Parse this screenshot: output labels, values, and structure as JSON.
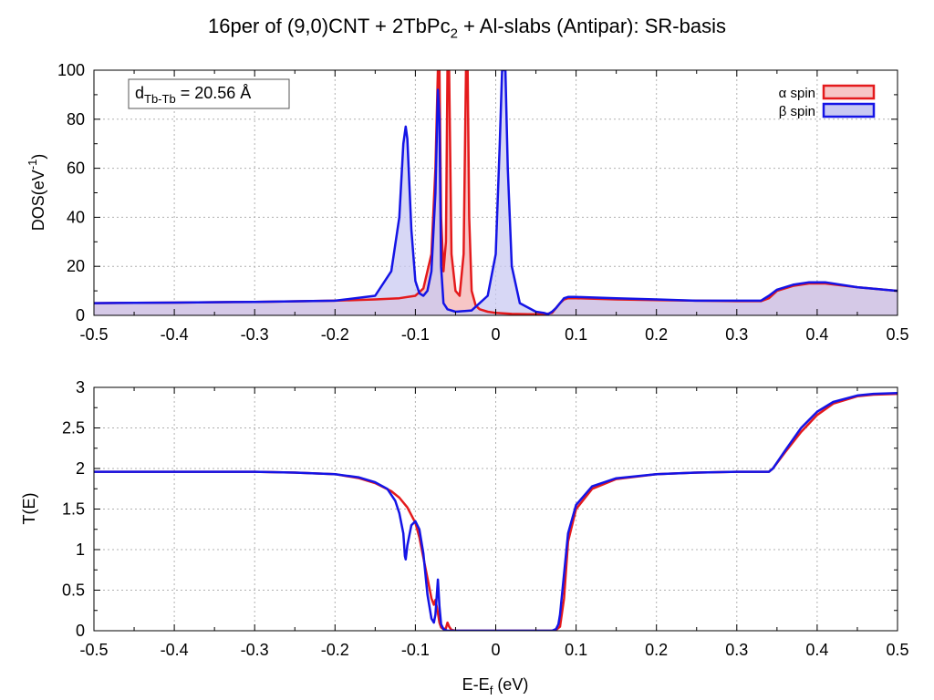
{
  "title": {
    "main": "16per of (9,0)CNT + 2TbPc",
    "sub": "2",
    "rest": " + Al-slabs (Antipar): SR-basis"
  },
  "colors": {
    "alpha": "#e41a1c",
    "beta": "#1414e6",
    "alpha_fill": "#f7c6c6",
    "beta_fill": "#c9c9f2",
    "overlap_fill": "#c7a3d4"
  },
  "chart_data": [
    {
      "type": "area",
      "panel": "top",
      "ylabel_main": "DOS(eV",
      "ylabel_sup": "-1",
      "ylabel_end": ")",
      "xlim": [
        -0.5,
        0.5
      ],
      "ylim": [
        0,
        100
      ],
      "xticks": [
        "-0.5",
        "-0.4",
        "-0.3",
        "-0.2",
        "-0.1",
        "0",
        "0.1",
        "0.2",
        "0.3",
        "0.4",
        "0.5"
      ],
      "yticks": [
        "0",
        "20",
        "40",
        "60",
        "80",
        "100"
      ],
      "grid": true,
      "legend_position": "top-right",
      "annotation": {
        "prefix": "d",
        "sub": "Tb-Tb",
        "suffix": " = 20.56 Å"
      },
      "series": [
        {
          "name": "α spin",
          "x": [
            -0.5,
            -0.4,
            -0.3,
            -0.2,
            -0.15,
            -0.12,
            -0.1,
            -0.09,
            -0.08,
            -0.075,
            -0.072,
            -0.07,
            -0.068,
            -0.065,
            -0.062,
            -0.06,
            -0.058,
            -0.055,
            -0.05,
            -0.045,
            -0.04,
            -0.037,
            -0.035,
            -0.033,
            -0.03,
            -0.025,
            -0.02,
            -0.01,
            0.0,
            0.02,
            0.04,
            0.06,
            0.07,
            0.075,
            0.08,
            0.085,
            0.09,
            0.1,
            0.15,
            0.2,
            0.25,
            0.3,
            0.33,
            0.34,
            0.35,
            0.37,
            0.39,
            0.41,
            0.45,
            0.5
          ],
          "y": [
            5,
            5.2,
            5.5,
            6,
            6.5,
            7,
            8,
            11,
            25,
            60,
            100,
            100,
            40,
            18,
            30,
            100,
            100,
            25,
            10,
            8,
            25,
            100,
            100,
            40,
            10,
            4,
            2.5,
            1.5,
            1,
            0.6,
            0.5,
            0.4,
            1,
            3,
            5,
            6.5,
            7,
            7,
            6.5,
            6.2,
            6,
            5.8,
            5.8,
            7,
            10,
            12,
            13,
            13,
            11.5,
            10
          ]
        },
        {
          "name": "β spin",
          "x": [
            -0.5,
            -0.4,
            -0.3,
            -0.2,
            -0.15,
            -0.13,
            -0.12,
            -0.115,
            -0.112,
            -0.11,
            -0.105,
            -0.1,
            -0.095,
            -0.09,
            -0.085,
            -0.08,
            -0.075,
            -0.072,
            -0.07,
            -0.068,
            -0.065,
            -0.06,
            -0.05,
            -0.03,
            -0.01,
            0.0,
            0.005,
            0.008,
            0.01,
            0.012,
            0.015,
            0.02,
            0.03,
            0.05,
            0.06,
            0.065,
            0.07,
            0.075,
            0.08,
            0.085,
            0.09,
            0.1,
            0.15,
            0.2,
            0.25,
            0.3,
            0.33,
            0.34,
            0.35,
            0.37,
            0.39,
            0.41,
            0.45,
            0.5
          ],
          "y": [
            5,
            5.2,
            5.5,
            6,
            8,
            18,
            40,
            70,
            77,
            72,
            35,
            14,
            9,
            8,
            10,
            18,
            50,
            92,
            80,
            20,
            5,
            2.5,
            1.5,
            2,
            8,
            25,
            70,
            100,
            100,
            100,
            60,
            20,
            5,
            1.5,
            1,
            0.5,
            1.5,
            3,
            5,
            7,
            7.5,
            7.5,
            7,
            6.5,
            6,
            6,
            6,
            8,
            10.5,
            12.5,
            13.5,
            13.5,
            11.5,
            10
          ]
        }
      ]
    },
    {
      "type": "line",
      "panel": "bottom",
      "xlabel_main": "E-E",
      "xlabel_sub": "f",
      "xlabel_end": " (eV)",
      "ylabel": "T(E)",
      "xlim": [
        -0.5,
        0.5
      ],
      "ylim": [
        0,
        3
      ],
      "xticks": [
        "-0.5",
        "-0.4",
        "-0.3",
        "-0.2",
        "-0.1",
        "0",
        "0.1",
        "0.2",
        "0.3",
        "0.4",
        "0.5"
      ],
      "yticks": [
        "0",
        "0.5",
        "1",
        "1.5",
        "2",
        "2.5",
        "3"
      ],
      "grid": true,
      "series": [
        {
          "name": "α spin",
          "x": [
            -0.5,
            -0.4,
            -0.3,
            -0.25,
            -0.2,
            -0.17,
            -0.15,
            -0.13,
            -0.12,
            -0.11,
            -0.1,
            -0.095,
            -0.09,
            -0.085,
            -0.08,
            -0.077,
            -0.075,
            -0.072,
            -0.07,
            -0.068,
            -0.065,
            -0.062,
            -0.06,
            -0.058,
            -0.055,
            -0.05,
            0.0,
            0.05,
            0.07,
            0.075,
            0.08,
            0.085,
            0.09,
            0.1,
            0.12,
            0.15,
            0.2,
            0.25,
            0.3,
            0.34,
            0.345,
            0.36,
            0.38,
            0.4,
            0.42,
            0.45,
            0.47,
            0.5
          ],
          "y": [
            1.96,
            1.96,
            1.96,
            1.95,
            1.93,
            1.88,
            1.82,
            1.72,
            1.64,
            1.52,
            1.33,
            1.15,
            0.9,
            0.65,
            0.4,
            0.32,
            0.38,
            0.22,
            0.1,
            0.04,
            0.02,
            0.03,
            0.1,
            0.05,
            0.01,
            0.0,
            0.0,
            0.0,
            0.0,
            0.01,
            0.05,
            0.4,
            1.1,
            1.5,
            1.75,
            1.87,
            1.93,
            1.95,
            1.96,
            1.96,
            2.0,
            2.2,
            2.45,
            2.66,
            2.8,
            2.89,
            2.91,
            2.92
          ]
        },
        {
          "name": "β spin",
          "x": [
            -0.5,
            -0.4,
            -0.3,
            -0.25,
            -0.2,
            -0.17,
            -0.15,
            -0.135,
            -0.125,
            -0.12,
            -0.115,
            -0.113,
            -0.112,
            -0.11,
            -0.105,
            -0.1,
            -0.095,
            -0.09,
            -0.085,
            -0.08,
            -0.077,
            -0.075,
            -0.072,
            -0.07,
            -0.068,
            -0.065,
            -0.06,
            -0.05,
            0.0,
            0.05,
            0.07,
            0.075,
            0.078,
            0.08,
            0.085,
            0.09,
            0.1,
            0.12,
            0.15,
            0.2,
            0.25,
            0.3,
            0.34,
            0.345,
            0.36,
            0.38,
            0.4,
            0.42,
            0.45,
            0.47,
            0.5
          ],
          "y": [
            1.96,
            1.96,
            1.96,
            1.95,
            1.93,
            1.89,
            1.83,
            1.75,
            1.6,
            1.45,
            1.2,
            0.92,
            0.88,
            1.05,
            1.3,
            1.35,
            1.25,
            0.95,
            0.45,
            0.15,
            0.1,
            0.2,
            0.63,
            0.3,
            0.08,
            0.02,
            0.0,
            0.0,
            0.0,
            0.0,
            0.0,
            0.02,
            0.08,
            0.2,
            0.7,
            1.2,
            1.55,
            1.78,
            1.88,
            1.93,
            1.95,
            1.96,
            1.96,
            2.0,
            2.22,
            2.5,
            2.7,
            2.82,
            2.9,
            2.92,
            2.93
          ]
        }
      ]
    }
  ]
}
